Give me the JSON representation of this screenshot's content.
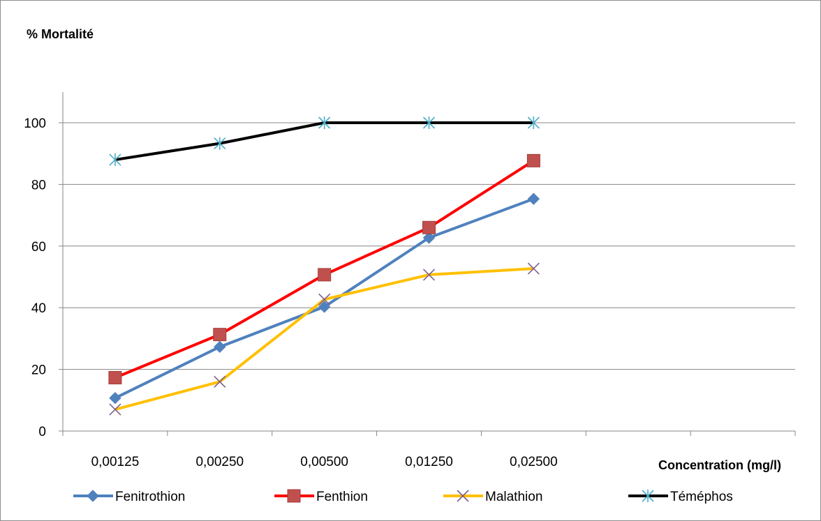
{
  "chart_data": {
    "type": "line",
    "title": "",
    "ylabel": "% Mortalité",
    "xlabel": "Concentration (mg/l)",
    "categories": [
      "0,00125",
      "0,00250",
      "0,00500",
      "0,01250",
      "0,02500"
    ],
    "ylim": [
      0,
      100
    ],
    "yticks": [
      0,
      20,
      40,
      60,
      80,
      100
    ],
    "grid": true,
    "legend_position": "bottom",
    "series": [
      {
        "name": "Fenitrothion",
        "color": "#4f81bd",
        "marker": "diamond",
        "values": [
          10.7,
          27.3,
          40.3,
          62.7,
          75.3
        ]
      },
      {
        "name": "Fenthion",
        "color": "#ff0000",
        "marker": "square",
        "values": [
          17.3,
          31.3,
          50.7,
          66.0,
          87.7
        ]
      },
      {
        "name": "Malathion",
        "color": "#ffc000",
        "marker": "x",
        "values": [
          7.0,
          16.0,
          42.7,
          50.7,
          52.7
        ]
      },
      {
        "name": "Téméphos",
        "color": "#000000",
        "marker": "asterisk",
        "values": [
          88.0,
          93.3,
          100,
          100,
          100
        ]
      }
    ]
  }
}
